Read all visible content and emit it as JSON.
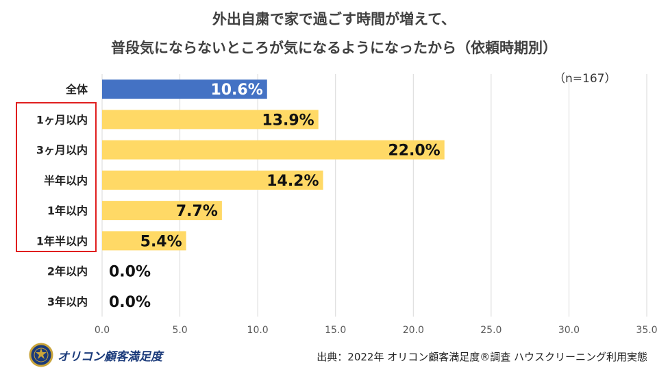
{
  "header": {
    "title_line1": "外出自粛で家で過ごす時間が増えて、",
    "title_line2": "普段気にならないところが気になるようになったから（依頼時期別）",
    "sample_size": "（n=167）"
  },
  "chart_data": {
    "type": "bar",
    "orientation": "horizontal",
    "categories": [
      "全体",
      "1ヶ月以内",
      "3ヶ月以内",
      "半年以内",
      "1年以内",
      "1年半以内",
      "2年以内",
      "3年以内"
    ],
    "values": [
      10.6,
      13.9,
      22.0,
      14.2,
      7.7,
      5.4,
      0.0,
      0.0
    ],
    "value_labels": [
      "10.6%",
      "13.9%",
      "22.0%",
      "14.2%",
      "7.7%",
      "5.4%",
      "0.0%",
      "0.0%"
    ],
    "xlim": [
      0,
      35
    ],
    "xticks": [
      0,
      5,
      10,
      15,
      20,
      25,
      30,
      35
    ],
    "xtick_labels": [
      "0.0",
      "5.0",
      "10.0",
      "15.0",
      "20.0",
      "25.0",
      "30.0",
      "35.0"
    ],
    "grid": true,
    "colors": {
      "overall": "#4472c4",
      "period": "#ffd966",
      "highlight_border": "#e01e1e"
    },
    "highlighted_categories": [
      "1ヶ月以内",
      "3ヶ月以内",
      "半年以内",
      "1年以内",
      "1年半以内"
    ]
  },
  "footer": {
    "logo_text": "オリコン顧客満足度",
    "source": "出典：2022年 オリコン顧客満足度®調査 ハウスクリーニング利用実態"
  }
}
